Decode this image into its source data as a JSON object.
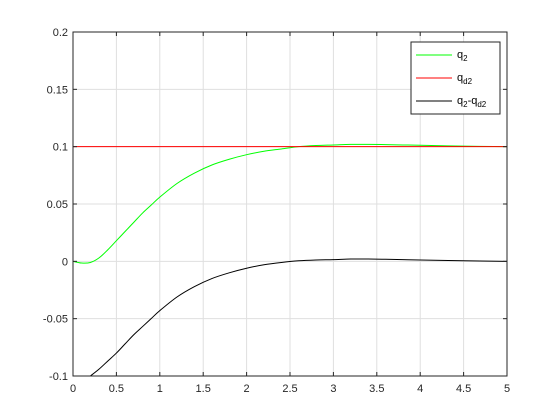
{
  "chart_data": {
    "type": "line",
    "title": "",
    "xlabel": "",
    "ylabel": "",
    "xlim": [
      0,
      5
    ],
    "ylim": [
      -0.1,
      0.2
    ],
    "x_ticks": [
      0,
      0.5,
      1,
      1.5,
      2,
      2.5,
      3,
      3.5,
      4,
      4.5,
      5
    ],
    "x_tick_labels": [
      "0",
      "0.5",
      "1",
      "1.5",
      "2",
      "2.5",
      "3",
      "3.5",
      "4",
      "4.5",
      "5"
    ],
    "y_ticks": [
      -0.1,
      -0.05,
      0,
      0.05,
      0.1,
      0.15,
      0.2
    ],
    "y_tick_labels": [
      "-0.1",
      "-0.05",
      "0",
      "0.05",
      "0.1",
      "0.15",
      "0.2"
    ],
    "grid": true,
    "legend_position": "top-right",
    "series": [
      {
        "name": "q_2",
        "legend_main": "q",
        "legend_sub": "2",
        "color": "#00ff00",
        "x": [
          0,
          0.1,
          0.2,
          0.3,
          0.4,
          0.5,
          0.6,
          0.7,
          0.8,
          0.9,
          1.0,
          1.2,
          1.4,
          1.6,
          1.8,
          2.0,
          2.2,
          2.4,
          2.6,
          2.8,
          3.0,
          3.2,
          3.4,
          3.6,
          3.8,
          4.0,
          4.5,
          5.0
        ],
        "y": [
          0,
          -0.0015,
          -0.001,
          0.003,
          0.01,
          0.018,
          0.026,
          0.034,
          0.042,
          0.049,
          0.056,
          0.068,
          0.077,
          0.084,
          0.089,
          0.093,
          0.096,
          0.098,
          0.1,
          0.101,
          0.1015,
          0.102,
          0.102,
          0.1018,
          0.1015,
          0.1012,
          0.1005,
          0.1
        ]
      },
      {
        "name": "q_d2",
        "legend_main": "q",
        "legend_sub": "d2",
        "color": "#ff0000",
        "x": [
          0,
          5
        ],
        "y": [
          0.1,
          0.1
        ]
      },
      {
        "name": "q_2-q_d2",
        "legend_main": "q",
        "legend_sub": "2",
        "legend_main2": "-q",
        "legend_sub2": "d2",
        "color": "#000000",
        "x": [
          0.2,
          0.3,
          0.4,
          0.5,
          0.6,
          0.7,
          0.8,
          0.9,
          1.0,
          1.2,
          1.4,
          1.6,
          1.8,
          2.0,
          2.2,
          2.4,
          2.6,
          2.8,
          3.0,
          3.2,
          3.4,
          3.6,
          3.8,
          4.0,
          4.5,
          5.0
        ],
        "y": [
          -0.1,
          -0.094,
          -0.087,
          -0.08,
          -0.072,
          -0.064,
          -0.057,
          -0.05,
          -0.043,
          -0.031,
          -0.022,
          -0.015,
          -0.01,
          -0.006,
          -0.003,
          -0.001,
          0.0005,
          0.0012,
          0.0015,
          0.002,
          0.002,
          0.0018,
          0.0015,
          0.0012,
          0.0005,
          0.0
        ]
      }
    ]
  }
}
